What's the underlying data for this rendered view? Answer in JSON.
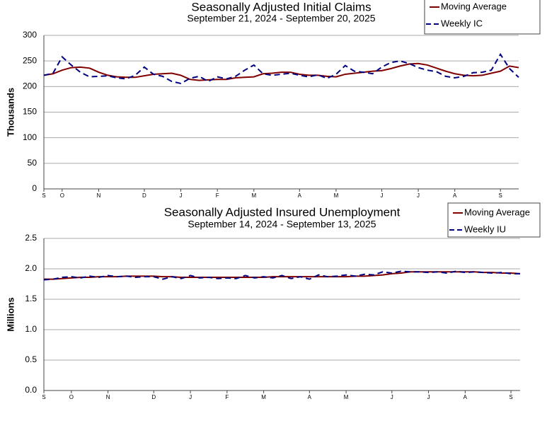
{
  "chart_data": [
    {
      "type": "line",
      "title": "Seasonally Adjusted Initial Claims",
      "subtitle": "September 21, 2024 - September 20, 2025",
      "ylabel": "Thousands",
      "categories": [
        "S",
        null,
        "O",
        null,
        null,
        null,
        "N",
        null,
        null,
        null,
        null,
        "D",
        null,
        null,
        null,
        "J",
        null,
        null,
        null,
        "F",
        null,
        null,
        null,
        "M",
        null,
        null,
        null,
        null,
        "A",
        null,
        null,
        null,
        "M",
        null,
        null,
        null,
        null,
        "J",
        null,
        null,
        null,
        "J",
        null,
        null,
        null,
        "A",
        null,
        null,
        null,
        null,
        "S",
        null,
        null
      ],
      "ylim": [
        0,
        300
      ],
      "yticks": [
        0,
        50,
        100,
        150,
        200,
        250,
        300
      ],
      "grid": true,
      "series": [
        {
          "name": "Moving Average",
          "color": "#800000",
          "values": [
            222,
            225,
            232,
            237,
            238,
            236,
            228,
            222,
            219,
            218,
            218,
            221,
            224,
            225,
            226,
            222,
            214,
            212,
            213,
            214,
            214,
            217,
            218,
            219,
            225,
            226,
            228,
            228,
            224,
            222,
            222,
            220,
            219,
            224,
            226,
            228,
            230,
            231,
            235,
            240,
            244,
            245,
            242,
            236,
            230,
            225,
            222,
            221,
            222,
            226,
            230,
            240,
            237
          ]
        },
        {
          "name": "Weekly IC",
          "color": "#000080",
          "dashed": true,
          "values": [
            222,
            226,
            258,
            242,
            228,
            219,
            220,
            221,
            217,
            215,
            222,
            238,
            224,
            220,
            210,
            206,
            216,
            220,
            210,
            219,
            215,
            220,
            232,
            242,
            225,
            222,
            224,
            226,
            222,
            219,
            223,
            216,
            224,
            241,
            230,
            228,
            225,
            238,
            247,
            250,
            245,
            237,
            232,
            229,
            220,
            217,
            220,
            227,
            228,
            232,
            263,
            235,
            218
          ]
        }
      ]
    },
    {
      "type": "line",
      "title": "Seasonally Adjusted Insured Unemployment",
      "subtitle": "September 14, 2024 - September 13, 2025",
      "ylabel": "Millions",
      "categories": [
        "S",
        null,
        null,
        "O",
        null,
        null,
        null,
        "N",
        null,
        null,
        null,
        null,
        "D",
        null,
        null,
        null,
        "J",
        null,
        null,
        null,
        "F",
        null,
        null,
        null,
        "M",
        null,
        null,
        null,
        null,
        "A",
        null,
        null,
        null,
        "M",
        null,
        null,
        null,
        null,
        "J",
        null,
        null,
        null,
        "J",
        null,
        null,
        null,
        "A",
        null,
        null,
        null,
        null,
        "S",
        null
      ],
      "ylim": [
        0,
        2.5
      ],
      "yticks": [
        {
          "value": 0,
          "label": "0.0"
        },
        0.5,
        {
          "value": 1,
          "label": "1.0"
        },
        1.5,
        {
          "value": 2,
          "label": "2.0"
        },
        2.5
      ],
      "grid": true,
      "series": [
        {
          "name": "Moving Average",
          "color": "#800000",
          "values": [
            1.83,
            1.83,
            1.84,
            1.85,
            1.86,
            1.86,
            1.87,
            1.87,
            1.87,
            1.88,
            1.88,
            1.88,
            1.88,
            1.87,
            1.87,
            1.86,
            1.86,
            1.86,
            1.86,
            1.86,
            1.86,
            1.86,
            1.86,
            1.86,
            1.86,
            1.87,
            1.87,
            1.87,
            1.87,
            1.87,
            1.87,
            1.87,
            1.87,
            1.87,
            1.88,
            1.88,
            1.89,
            1.9,
            1.92,
            1.93,
            1.95,
            1.95,
            1.95,
            1.95,
            1.95,
            1.95,
            1.95,
            1.95,
            1.94,
            1.94,
            1.93,
            1.93,
            1.92
          ]
        },
        {
          "name": "Weekly IU",
          "color": "#000080",
          "dashed": true,
          "values": [
            1.82,
            1.83,
            1.86,
            1.87,
            1.85,
            1.88,
            1.86,
            1.89,
            1.87,
            1.88,
            1.86,
            1.87,
            1.87,
            1.83,
            1.87,
            1.84,
            1.89,
            1.85,
            1.86,
            1.84,
            1.85,
            1.84,
            1.89,
            1.85,
            1.87,
            1.85,
            1.89,
            1.84,
            1.87,
            1.83,
            1.9,
            1.87,
            1.88,
            1.9,
            1.88,
            1.91,
            1.9,
            1.95,
            1.93,
            1.96,
            1.95,
            1.95,
            1.94,
            1.95,
            1.93,
            1.96,
            1.94,
            1.95,
            1.94,
            1.93,
            1.94,
            1.92,
            1.92
          ]
        }
      ]
    }
  ]
}
